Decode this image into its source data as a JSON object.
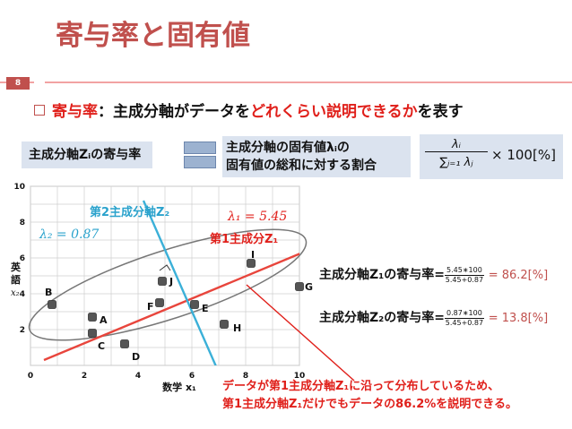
{
  "slide": {
    "title": "寄与率と固有値",
    "page_number": "8",
    "bullet_term": "寄与率",
    "bullet_sep": "：",
    "bullet_mid": "主成分軸がデータを",
    "bullet_emph": "どれくらい説明できるか",
    "bullet_tail": "を表す"
  },
  "definition": {
    "left_label": "主成分軸Zᵢの寄与率",
    "mid_line1": "主成分軸の固有値λᵢの",
    "mid_line2": "固有値の総和に対する割合",
    "formula_num": "λᵢ",
    "formula_den": "∑ⱼ₌₁ λⱼ",
    "formula_tail": "× 100[%]"
  },
  "contributions": [
    {
      "label": "主成分軸Z₁の寄与率=",
      "frac_num": "5.45∗100",
      "frac_den": "5.45+0.87",
      "result": "= 86.2[%]"
    },
    {
      "label": "主成分軸Z₂の寄与率=",
      "frac_num": "0.87∗100",
      "frac_den": "5.45+0.87",
      "result": "= 13.8[%]"
    }
  ],
  "note": {
    "line1": "データが第1主成分軸Z₁に沿って分布しているため、",
    "line2": "第1主成分軸Z₁だけでもデータの86.2%を説明できる。"
  },
  "chart_data": {
    "type": "scatter",
    "xlabel": "数学 x₁",
    "ylabel_chars": [
      "英",
      "語",
      "x₂"
    ],
    "xlim": [
      0,
      10
    ],
    "ylim": [
      0,
      10
    ],
    "xticks": [
      "0",
      "2",
      "4",
      "6",
      "8",
      "10"
    ],
    "yticks": [
      "2",
      "4",
      "6",
      "8",
      "10"
    ],
    "points": [
      {
        "name": "A",
        "x": 2.3,
        "y": 2.7
      },
      {
        "name": "B",
        "x": 0.8,
        "y": 3.4
      },
      {
        "name": "C",
        "x": 2.3,
        "y": 1.8
      },
      {
        "name": "D",
        "x": 3.5,
        "y": 1.2
      },
      {
        "name": "E",
        "x": 6.1,
        "y": 3.4
      },
      {
        "name": "F",
        "x": 4.8,
        "y": 3.5
      },
      {
        "name": "G",
        "x": 10.0,
        "y": 4.4
      },
      {
        "name": "H",
        "x": 7.2,
        "y": 2.3
      },
      {
        "name": "I",
        "x": 8.2,
        "y": 5.7
      },
      {
        "name": "J",
        "x": 4.9,
        "y": 4.7
      }
    ],
    "axis1": {
      "label": "第1主成分Z₁",
      "eigen_label": "λ₁ = 5.45",
      "color": "#e8453c",
      "from": [
        0.5,
        0.3
      ],
      "to": [
        10.6,
        6.6
      ]
    },
    "axis2": {
      "label": "第2主成分軸Z₂",
      "eigen_label": "λ₂ = 0.87",
      "color": "#3bb0d8",
      "from": [
        4.2,
        9.2
      ],
      "to": [
        7.0,
        -0.4
      ]
    }
  }
}
